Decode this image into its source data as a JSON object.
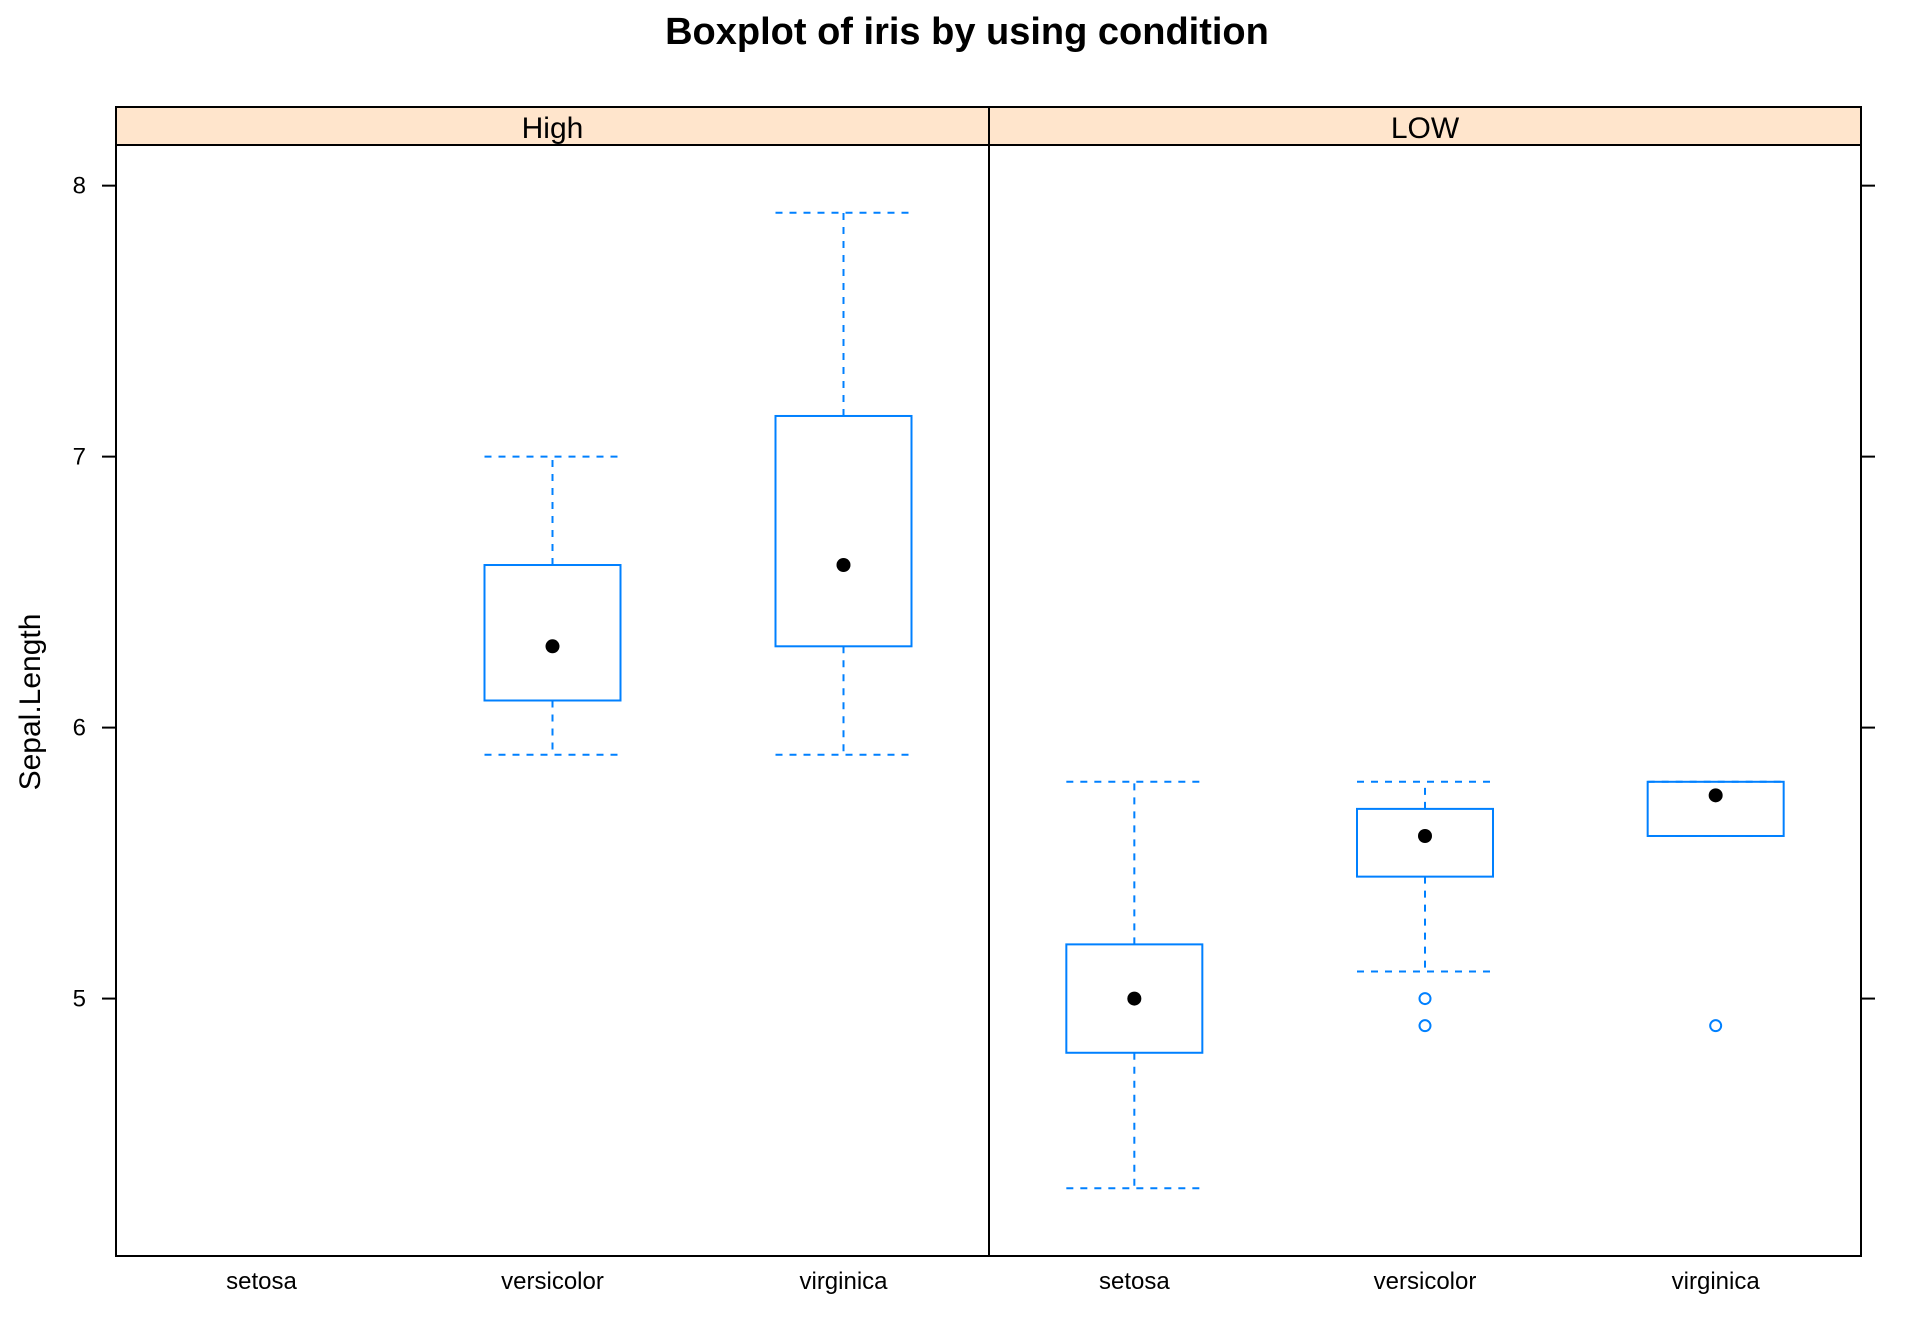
{
  "chart_data": {
    "type": "boxplot",
    "title": "Boxplot of iris by using condition",
    "ylabel": "Sepal.Length",
    "xlabel": "",
    "ylim": [
      4.05,
      8.15
    ],
    "yticks": [
      5,
      6,
      7,
      8
    ],
    "ytick_labels": [
      "5",
      "6",
      "7",
      "8"
    ],
    "categories": [
      "setosa",
      "versicolor",
      "virginica"
    ],
    "colors": {
      "box": "#0080ff",
      "median_dot": "#000000",
      "strip_bg": "#ffe5cc",
      "frame": "#000000"
    },
    "panels": [
      {
        "name": "High",
        "boxes": [
          {
            "category": "setosa",
            "present": false
          },
          {
            "category": "versicolor",
            "present": true,
            "min": 5.9,
            "q1": 6.1,
            "median": 6.3,
            "q3": 6.6,
            "max": 7.0,
            "outliers": []
          },
          {
            "category": "virginica",
            "present": true,
            "min": 5.9,
            "q1": 6.3,
            "median": 6.6,
            "q3": 7.15,
            "max": 7.9,
            "outliers": []
          }
        ]
      },
      {
        "name": "LOW",
        "boxes": [
          {
            "category": "setosa",
            "present": true,
            "min": 4.3,
            "q1": 4.8,
            "median": 5.0,
            "q3": 5.2,
            "max": 5.8,
            "outliers": []
          },
          {
            "category": "versicolor",
            "present": true,
            "min": 5.1,
            "q1": 5.45,
            "median": 5.6,
            "q3": 5.7,
            "max": 5.8,
            "outliers": [
              4.9,
              5.0
            ]
          },
          {
            "category": "virginica",
            "present": true,
            "min": 5.6,
            "q1": 5.6,
            "median": 5.75,
            "q3": 5.8,
            "max": 5.8,
            "outliers": [
              4.9
            ]
          }
        ]
      }
    ]
  }
}
